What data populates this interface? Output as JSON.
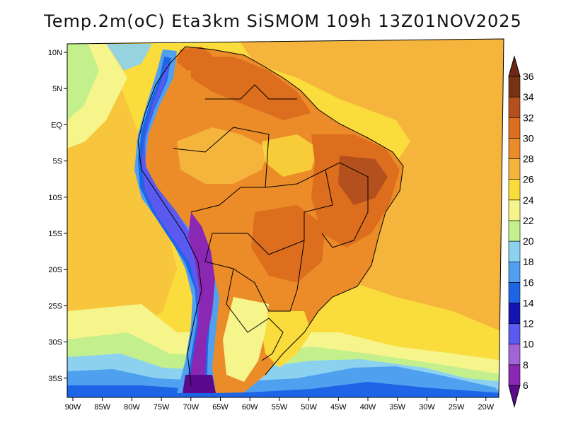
{
  "title": "Temp.2m(oC) Eta3km SiSMOM 109h 13Z01NOV2025",
  "map": {
    "variable": "2 m air temperature",
    "units": "oC",
    "region": "South America",
    "lon_range": [
      -91,
      -20
    ],
    "lat_range": [
      -38,
      12
    ],
    "lon_ticks": [
      {
        "value": -90,
        "label": "90W"
      },
      {
        "value": -85,
        "label": "85W"
      },
      {
        "value": -80,
        "label": "80W"
      },
      {
        "value": -75,
        "label": "75W"
      },
      {
        "value": -70,
        "label": "70W"
      },
      {
        "value": -65,
        "label": "65W"
      },
      {
        "value": -60,
        "label": "60W"
      },
      {
        "value": -55,
        "label": "55W"
      },
      {
        "value": -50,
        "label": "50W"
      },
      {
        "value": -45,
        "label": "45W"
      },
      {
        "value": -40,
        "label": "40W"
      },
      {
        "value": -35,
        "label": "35W"
      },
      {
        "value": -30,
        "label": "30W"
      },
      {
        "value": -25,
        "label": "25W"
      },
      {
        "value": -20,
        "label": "20W"
      }
    ],
    "lat_ticks": [
      {
        "value": 10,
        "label": "10N"
      },
      {
        "value": 5,
        "label": "5N"
      },
      {
        "value": 0,
        "label": "EQ"
      },
      {
        "value": -5,
        "label": "5S"
      },
      {
        "value": -10,
        "label": "10S"
      },
      {
        "value": -15,
        "label": "15S"
      },
      {
        "value": -20,
        "label": "20S"
      },
      {
        "value": -25,
        "label": "25S"
      },
      {
        "value": -30,
        "label": "30S"
      },
      {
        "value": -35,
        "label": "35S"
      }
    ]
  },
  "colorbar": {
    "levels": [
      {
        "label": "6",
        "value": 6,
        "color": "#5a0a8c"
      },
      {
        "label": "8",
        "value": 8,
        "color": "#8a28b4"
      },
      {
        "label": "10",
        "value": 10,
        "color": "#a064d6"
      },
      {
        "label": "12",
        "value": 12,
        "color": "#5a5af0"
      },
      {
        "label": "14",
        "value": 14,
        "color": "#1414b4"
      },
      {
        "label": "16",
        "value": 16,
        "color": "#1e64e6"
      },
      {
        "label": "18",
        "value": 18,
        "color": "#50a0f0"
      },
      {
        "label": "20",
        "value": 20,
        "color": "#8cd2f0"
      },
      {
        "label": "22",
        "value": 22,
        "color": "#c3f08c"
      },
      {
        "label": "24",
        "value": 24,
        "color": "#f5f58c"
      },
      {
        "label": "26",
        "value": 26,
        "color": "#fadc3c"
      },
      {
        "label": "28",
        "value": 28,
        "color": "#f5b43c"
      },
      {
        "label": "30",
        "value": 30,
        "color": "#eb8c28"
      },
      {
        "label": "32",
        "value": 32,
        "color": "#dc6e1e"
      },
      {
        "label": "34",
        "value": 34,
        "color": "#b4501e"
      },
      {
        "label": "36",
        "value": 36,
        "color": "#783214"
      }
    ],
    "below_color": "#5a0a8c",
    "above_color": "#6e2814"
  }
}
